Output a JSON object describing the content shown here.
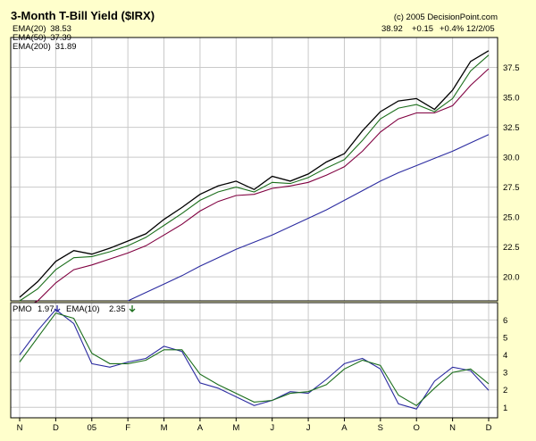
{
  "chart_data": [
    {
      "type": "line",
      "title": "3-Month T-Bill Yield ($IRX)",
      "copyright": "(c) 2005 DecisionPoint.com",
      "quote": {
        "last": "38.92",
        "change": "+0.15",
        "pct": "+0.4%",
        "date": "12/2/05"
      },
      "legend": [
        {
          "label": "EMA(20)",
          "value": "38.53"
        },
        {
          "label": "EMA(50)",
          "value": "37.39"
        },
        {
          "label": "EMA(200)",
          "value": "31.89"
        }
      ],
      "legend_position": "top-left",
      "grid": true,
      "ylim": [
        18.0,
        40.0
      ],
      "y_ticks": [
        "20.0",
        "22.5",
        "25.0",
        "27.5",
        "30.0",
        "32.5",
        "35.0",
        "37.5"
      ],
      "x_labels": [
        "N",
        "D",
        "05",
        "F",
        "M",
        "A",
        "M",
        "J",
        "J",
        "A",
        "S",
        "O",
        "N",
        "D"
      ],
      "x": [
        0,
        0.5,
        1,
        1.5,
        2,
        2.5,
        3,
        3.5,
        4,
        4.5,
        5,
        5.5,
        6,
        6.5,
        7,
        7.5,
        8,
        8.5,
        9,
        9.5,
        10,
        10.5,
        11,
        11.5,
        12,
        12.5,
        13
      ],
      "series": [
        {
          "name": "Price",
          "color": "#000000",
          "values": [
            18.3,
            19.6,
            21.3,
            22.2,
            21.9,
            22.4,
            23.0,
            23.6,
            24.8,
            25.8,
            26.9,
            27.6,
            28.0,
            27.3,
            28.4,
            28.0,
            28.6,
            29.6,
            30.3,
            32.2,
            33.8,
            34.7,
            34.9,
            34.0,
            35.6,
            38.0,
            38.9
          ]
        },
        {
          "name": "EMA(20)",
          "color": "#1B6E1B",
          "values": [
            18.0,
            19.0,
            20.6,
            21.6,
            21.7,
            22.1,
            22.6,
            23.3,
            24.3,
            25.3,
            26.4,
            27.1,
            27.5,
            27.1,
            27.9,
            27.8,
            28.3,
            29.1,
            29.8,
            31.4,
            33.2,
            34.1,
            34.4,
            33.8,
            34.9,
            37.2,
            38.53
          ]
        },
        {
          "name": "EMA(50)",
          "color": "#800040",
          "values": [
            17.2,
            18.0,
            19.5,
            20.6,
            21.0,
            21.5,
            22.0,
            22.6,
            23.5,
            24.4,
            25.5,
            26.3,
            26.8,
            26.9,
            27.4,
            27.6,
            27.9,
            28.5,
            29.2,
            30.5,
            32.1,
            33.2,
            33.7,
            33.7,
            34.3,
            36.0,
            37.39
          ]
        },
        {
          "name": "EMA(200)",
          "color": "#2B2BA0",
          "values": [
            null,
            null,
            null,
            null,
            null,
            null,
            18.0,
            18.7,
            19.4,
            20.1,
            20.9,
            21.6,
            22.3,
            22.9,
            23.5,
            24.2,
            24.9,
            25.6,
            26.4,
            27.2,
            28.0,
            28.7,
            29.3,
            29.9,
            30.5,
            31.2,
            31.89
          ]
        }
      ]
    },
    {
      "type": "line",
      "label": "PMO",
      "legend": [
        {
          "label": "PMO",
          "value": "1.97"
        },
        {
          "label": "EMA(10)",
          "value": "2.35"
        }
      ],
      "ylim": [
        0.4,
        7.0
      ],
      "y_ticks": [
        "1",
        "2",
        "3",
        "4",
        "5",
        "6"
      ],
      "x": [
        0,
        0.5,
        1,
        1.5,
        2,
        2.5,
        3,
        3.5,
        4,
        4.5,
        5,
        5.5,
        6,
        6.5,
        7,
        7.5,
        8,
        8.5,
        9,
        9.5,
        10,
        10.5,
        11,
        11.5,
        12,
        12.5,
        13
      ],
      "series": [
        {
          "name": "PMO",
          "color": "#2B2BA0",
          "values": [
            4.0,
            5.4,
            6.6,
            5.8,
            3.5,
            3.3,
            3.6,
            3.8,
            4.5,
            4.2,
            2.4,
            2.1,
            1.6,
            1.1,
            1.4,
            1.9,
            1.8,
            2.6,
            3.5,
            3.8,
            3.2,
            1.2,
            0.9,
            2.5,
            3.3,
            3.1,
            1.97
          ]
        },
        {
          "name": "EMA(10)",
          "color": "#1B6E1B",
          "values": [
            3.6,
            5.0,
            6.4,
            6.1,
            4.1,
            3.5,
            3.5,
            3.7,
            4.3,
            4.3,
            2.9,
            2.3,
            1.8,
            1.3,
            1.4,
            1.8,
            1.9,
            2.3,
            3.2,
            3.7,
            3.4,
            1.7,
            1.1,
            2.1,
            3.0,
            3.2,
            2.35
          ]
        }
      ]
    }
  ]
}
